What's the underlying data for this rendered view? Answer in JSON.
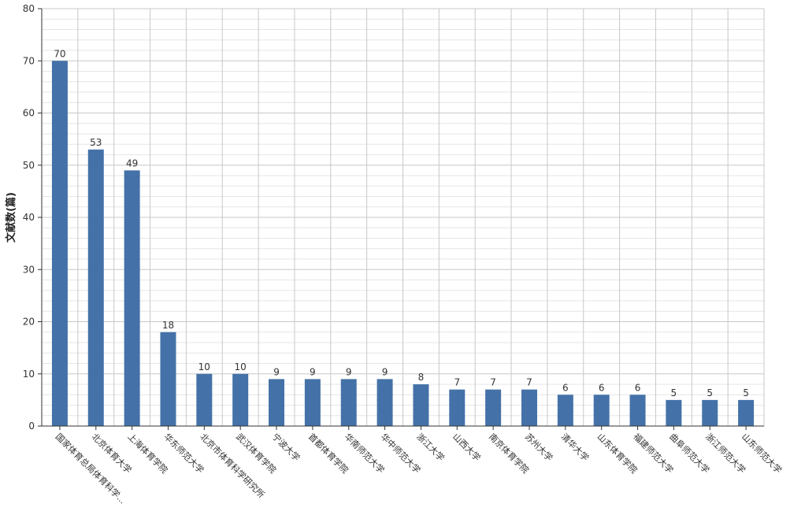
{
  "chart_data": {
    "type": "bar",
    "ylabel": "文献数(篇)",
    "ylim": [
      0,
      80
    ],
    "y_ticks": [
      0,
      10,
      20,
      30,
      40,
      50,
      60,
      70,
      80
    ],
    "grid": true,
    "bar_color": "#4472A8",
    "categories": [
      "国家体育总局体育科学...",
      "北京体育大学",
      "上海体育学院",
      "华东师范大学",
      "北京市体育科学研究所",
      "武汉体育学院",
      "宁波大学",
      "首都体育学院",
      "华南师范大学",
      "华中师范大学",
      "浙江大学",
      "山西大学",
      "南京体育学院",
      "苏州大学",
      "清华大学",
      "山东体育学院",
      "福建师范大学",
      "曲阜师范大学",
      "浙江师范大学",
      "山东师范大学"
    ],
    "values": [
      70,
      53,
      49,
      18,
      10,
      10,
      9,
      9,
      9,
      9,
      8,
      7,
      7,
      7,
      6,
      6,
      6,
      5,
      5,
      5
    ]
  }
}
